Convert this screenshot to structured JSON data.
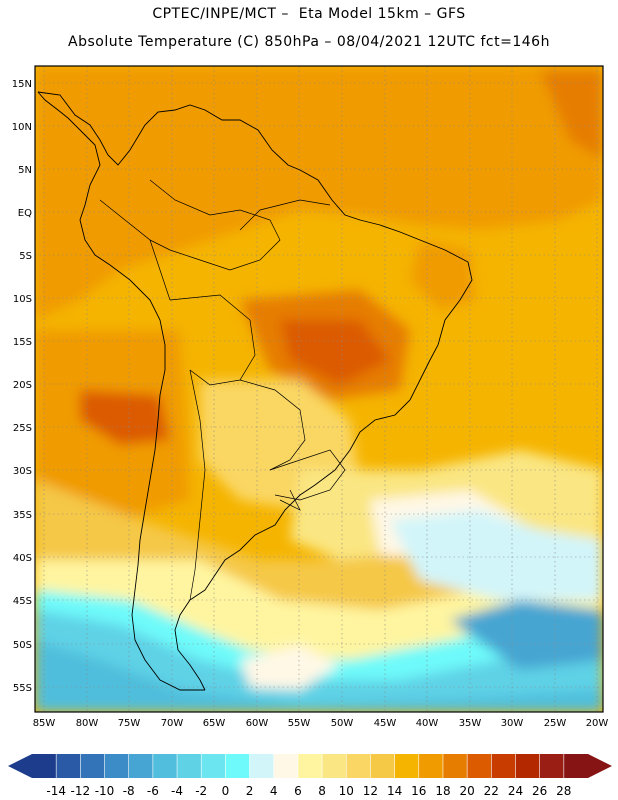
{
  "header": {
    "line1": "CPTEC/INPE/MCT –  Eta Model 15km – GFS",
    "line2": "Absolute Temperature (C) 850hPa – 08/04/2021 12UTC fct=146h"
  },
  "map": {
    "lat_labels": [
      "15N",
      "10N",
      "5N",
      "EQ",
      "5S",
      "10S",
      "15S",
      "20S",
      "25S",
      "30S",
      "35S",
      "40S",
      "45S",
      "50S",
      "55S"
    ],
    "lon_labels": [
      "85W",
      "80W",
      "75W",
      "70W",
      "65W",
      "60W",
      "55W",
      "50W",
      "45W",
      "40W",
      "35W",
      "30W",
      "25W",
      "20W"
    ]
  },
  "colorbar": {
    "labels": [
      "-14",
      "-12",
      "-10",
      "-8",
      "-6",
      "-4",
      "-2",
      "0",
      "2",
      "4",
      "6",
      "8",
      "10",
      "12",
      "14",
      "16",
      "18",
      "20",
      "22",
      "24",
      "26",
      "28"
    ],
    "colors": [
      "#1e3c8c",
      "#2a5aa5",
      "#3373b8",
      "#3c8cc8",
      "#46a5d2",
      "#50bedc",
      "#5fd2e6",
      "#6be6f0",
      "#6efafa",
      "#d2f5fa",
      "#fff8e6",
      "#fff5a0",
      "#fae682",
      "#fad764",
      "#f5c846",
      "#f5b400",
      "#f09b00",
      "#e67d00",
      "#dc5a00",
      "#c83c00",
      "#b42800",
      "#9b1e14",
      "#871414"
    ]
  }
}
